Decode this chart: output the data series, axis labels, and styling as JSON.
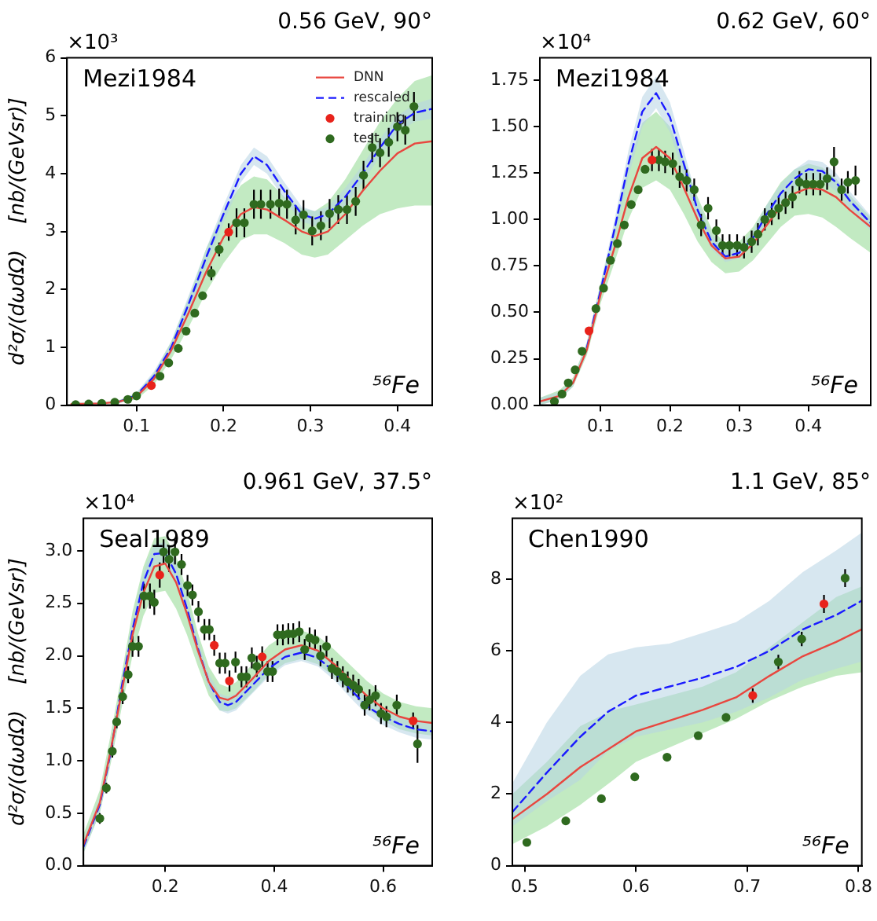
{
  "chart_data": [
    {
      "type": "line",
      "title": "0.56 GeV, 90°",
      "ylabel": "d²σ/(dωdΩ)    [nb/(GeVsr)]",
      "annotations": [
        "×10³",
        "Mezi1984",
        "⁵⁶Fe"
      ],
      "legend": "top right",
      "xlim": [
        0.02,
        0.44
      ],
      "xticks": [
        0.1,
        0.2,
        0.3,
        0.4
      ],
      "ylim": [
        0,
        6
      ],
      "yticks": [
        0,
        1,
        2,
        3,
        4,
        5,
        6
      ],
      "series": [
        {
          "name": "DNN",
          "type": "line",
          "color": "#e8473f",
          "line_style": "solid",
          "x": [
            0.025,
            0.06,
            0.08,
            0.1,
            0.12,
            0.14,
            0.16,
            0.18,
            0.2,
            0.22,
            0.235,
            0.25,
            0.27,
            0.29,
            0.305,
            0.32,
            0.34,
            0.36,
            0.38,
            0.4,
            0.42,
            0.44
          ],
          "values": [
            0.02,
            0.03,
            0.06,
            0.15,
            0.45,
            0.95,
            1.6,
            2.3,
            2.9,
            3.3,
            3.42,
            3.38,
            3.2,
            3.0,
            2.92,
            3.0,
            3.3,
            3.7,
            4.05,
            4.35,
            4.52,
            4.56
          ],
          "lower": [
            0,
            0.02,
            0.04,
            0.1,
            0.35,
            0.8,
            1.35,
            1.95,
            2.45,
            2.85,
            2.95,
            2.95,
            2.8,
            2.6,
            2.55,
            2.6,
            2.85,
            3.1,
            3.3,
            3.4,
            3.45,
            3.45
          ],
          "upper": [
            0.04,
            0.05,
            0.09,
            0.2,
            0.55,
            1.1,
            1.85,
            2.7,
            3.35,
            3.8,
            3.95,
            3.9,
            3.6,
            3.4,
            3.35,
            3.5,
            3.9,
            4.4,
            4.9,
            5.3,
            5.6,
            5.7
          ]
        },
        {
          "name": "rescaled",
          "type": "line",
          "color": "#1a1aff",
          "line_style": "dashed",
          "x": [
            0.025,
            0.06,
            0.08,
            0.1,
            0.12,
            0.14,
            0.16,
            0.18,
            0.2,
            0.22,
            0.235,
            0.25,
            0.27,
            0.29,
            0.305,
            0.32,
            0.34,
            0.36,
            0.38,
            0.4,
            0.42,
            0.44
          ],
          "values": [
            null,
            null,
            0.06,
            0.17,
            0.5,
            1.0,
            1.75,
            2.55,
            3.3,
            4.0,
            4.3,
            4.15,
            3.7,
            3.3,
            3.22,
            3.3,
            3.6,
            4.0,
            4.45,
            4.85,
            5.05,
            5.12
          ],
          "lower": [
            0,
            0.02,
            0.04,
            0.12,
            0.42,
            0.9,
            1.6,
            2.4,
            3.15,
            3.85,
            4.15,
            4.0,
            3.55,
            3.17,
            3.1,
            3.17,
            3.45,
            3.85,
            4.3,
            4.7,
            4.9,
            4.95
          ],
          "upper": [
            0.04,
            0.05,
            0.08,
            0.22,
            0.58,
            1.1,
            1.9,
            2.7,
            3.45,
            4.15,
            4.45,
            4.3,
            3.85,
            3.43,
            3.35,
            3.43,
            3.75,
            4.15,
            4.6,
            5.0,
            5.2,
            5.3
          ]
        },
        {
          "name": "training",
          "type": "scatter",
          "color": "#e8231b",
          "marker": "circle",
          "x": [
            0.117,
            0.206
          ],
          "values": [
            0.34,
            2.99
          ],
          "errors": [
            null,
            0.15
          ]
        },
        {
          "name": "test",
          "type": "scatter",
          "color": "#2f6a1f",
          "marker": "circle",
          "x": [
            0.03,
            0.045,
            0.06,
            0.075,
            0.09,
            0.1,
            0.127,
            0.137,
            0.148,
            0.157,
            0.167,
            0.176,
            0.186,
            0.195,
            0.215,
            0.224,
            0.235,
            0.243,
            0.254,
            0.264,
            0.273,
            0.283,
            0.292,
            0.302,
            0.312,
            0.322,
            0.332,
            0.342,
            0.352,
            0.361,
            0.371,
            0.38,
            0.39,
            0.4,
            0.409,
            0.419
          ],
          "values": [
            0.01,
            0.02,
            0.03,
            0.05,
            0.1,
            0.16,
            0.5,
            0.73,
            0.98,
            1.28,
            1.59,
            1.89,
            2.28,
            2.69,
            3.15,
            3.15,
            3.47,
            3.47,
            3.47,
            3.49,
            3.47,
            3.2,
            3.29,
            3.01,
            3.1,
            3.31,
            3.38,
            3.38,
            3.52,
            3.97,
            4.45,
            4.36,
            4.54,
            4.81,
            4.75,
            5.16
          ],
          "errors": [
            null,
            null,
            null,
            null,
            null,
            null,
            null,
            null,
            null,
            null,
            null,
            null,
            0.12,
            0.12,
            0.25,
            0.25,
            0.25,
            0.25,
            0.25,
            0.25,
            0.25,
            0.25,
            0.25,
            0.25,
            0.25,
            0.25,
            0.25,
            0.25,
            0.25,
            0.25,
            0.25,
            0.25,
            0.25,
            0.25,
            0.25,
            0.25
          ]
        }
      ]
    },
    {
      "type": "line",
      "title": "0.62 GeV, 60°",
      "annotations": [
        "×10⁴",
        "Mezi1984",
        "⁵⁶Fe"
      ],
      "xlim": [
        0.012,
        0.49
      ],
      "xticks": [
        0.1,
        0.2,
        0.3,
        0.4
      ],
      "ylim": [
        0,
        1.87
      ],
      "yticks": [
        {
          "value": 0,
          "label": "0.00"
        },
        0.25,
        {
          "value": 0.5,
          "label": "0.50"
        },
        0.75,
        {
          "value": 1,
          "label": "1.00"
        },
        1.25,
        {
          "value": 1.5,
          "label": "1.50"
        },
        1.75
      ],
      "series": [
        {
          "type": "line",
          "color": "#e8473f",
          "line_style": "solid",
          "x": [
            0.012,
            0.04,
            0.06,
            0.08,
            0.1,
            0.12,
            0.14,
            0.16,
            0.18,
            0.2,
            0.22,
            0.24,
            0.26,
            0.28,
            0.3,
            0.32,
            0.34,
            0.36,
            0.38,
            0.4,
            0.42,
            0.44,
            0.46,
            0.49
          ],
          "values": [
            0.02,
            0.05,
            0.12,
            0.3,
            0.6,
            0.85,
            1.12,
            1.33,
            1.39,
            1.33,
            1.17,
            1.0,
            0.86,
            0.79,
            0.8,
            0.87,
            0.97,
            1.07,
            1.14,
            1.17,
            1.16,
            1.12,
            1.05,
            0.96
          ],
          "lower": [
            0,
            0.03,
            0.1,
            0.27,
            0.55,
            0.77,
            1.0,
            1.17,
            1.21,
            1.16,
            1.03,
            0.88,
            0.77,
            0.71,
            0.72,
            0.78,
            0.87,
            0.96,
            1.02,
            1.03,
            1.01,
            0.96,
            0.9,
            0.82
          ],
          "upper": [
            0.04,
            0.08,
            0.15,
            0.34,
            0.66,
            0.95,
            1.3,
            1.52,
            1.58,
            1.5,
            1.32,
            1.12,
            0.95,
            0.87,
            0.88,
            0.96,
            1.08,
            1.2,
            1.27,
            1.3,
            1.28,
            1.22,
            1.13,
            1.01
          ]
        },
        {
          "type": "line",
          "color": "#1a1aff",
          "line_style": "dashed",
          "x": [
            0.012,
            0.04,
            0.06,
            0.08,
            0.1,
            0.12,
            0.14,
            0.16,
            0.18,
            0.2,
            0.22,
            0.24,
            0.26,
            0.28,
            0.3,
            0.32,
            0.34,
            0.36,
            0.38,
            0.4,
            0.42,
            0.44,
            0.46,
            0.49
          ],
          "values": [
            null,
            null,
            null,
            0.31,
            0.62,
            0.95,
            1.3,
            1.58,
            1.68,
            1.55,
            1.3,
            1.05,
            0.88,
            0.8,
            0.82,
            0.9,
            1.03,
            1.14,
            1.22,
            1.27,
            1.26,
            1.2,
            1.1,
            0.98
          ],
          "lower": [
            0,
            0.03,
            0.1,
            0.28,
            0.58,
            0.9,
            1.23,
            1.5,
            1.6,
            1.47,
            1.23,
            1.0,
            0.84,
            0.77,
            0.79,
            0.86,
            0.98,
            1.09,
            1.17,
            1.22,
            1.21,
            1.15,
            1.05,
            0.94
          ],
          "upper": [
            0.04,
            0.07,
            0.14,
            0.34,
            0.66,
            1.0,
            1.37,
            1.66,
            1.77,
            1.63,
            1.37,
            1.1,
            0.92,
            0.83,
            0.85,
            0.94,
            1.08,
            1.19,
            1.27,
            1.32,
            1.31,
            1.25,
            1.15,
            1.02
          ]
        },
        {
          "type": "scatter",
          "color": "#e8231b",
          "marker": "circle",
          "x": [
            0.083,
            0.174
          ],
          "values": [
            0.4,
            1.32
          ],
          "errors": [
            null,
            0.06
          ]
        },
        {
          "type": "scatter",
          "color": "#2f6a1f",
          "marker": "circle",
          "x": [
            0.033,
            0.044,
            0.053,
            0.063,
            0.073,
            0.093,
            0.104,
            0.114,
            0.124,
            0.134,
            0.144,
            0.154,
            0.164,
            0.184,
            0.193,
            0.204,
            0.214,
            0.224,
            0.235,
            0.245,
            0.255,
            0.267,
            0.276,
            0.286,
            0.297,
            0.307,
            0.318,
            0.327,
            0.337,
            0.347,
            0.357,
            0.367,
            0.377,
            0.387,
            0.397,
            0.407,
            0.417,
            0.427,
            0.437,
            0.448,
            0.457,
            0.468
          ],
          "values": [
            0.02,
            0.06,
            0.12,
            0.19,
            0.29,
            0.52,
            0.63,
            0.78,
            0.87,
            0.97,
            1.08,
            1.16,
            1.27,
            1.32,
            1.31,
            1.3,
            1.23,
            1.21,
            1.16,
            0.97,
            1.06,
            0.94,
            0.86,
            0.86,
            0.86,
            0.85,
            0.88,
            0.92,
            1.0,
            1.03,
            1.06,
            1.09,
            1.12,
            1.2,
            1.19,
            1.19,
            1.19,
            1.22,
            1.31,
            1.16,
            1.2,
            1.21
          ],
          "errors": [
            null,
            null,
            null,
            null,
            null,
            null,
            null,
            null,
            null,
            null,
            null,
            null,
            null,
            0.06,
            0.06,
            0.06,
            0.06,
            0.06,
            0.06,
            0.06,
            0.06,
            0.06,
            0.06,
            0.06,
            0.06,
            0.06,
            0.06,
            0.06,
            0.06,
            0.06,
            0.06,
            0.06,
            0.06,
            0.06,
            0.06,
            0.06,
            0.06,
            0.06,
            0.08,
            0.06,
            0.06,
            0.08
          ]
        }
      ]
    },
    {
      "type": "line",
      "title": "0.961 GeV, 37.5°",
      "ylabel": "d²σ/(dωdΩ)    [nb/(GeVsr)]",
      "annotations": [
        "×10⁴",
        "Seal1989",
        "⁵⁶Fe"
      ],
      "xlim": [
        0.05,
        0.69
      ],
      "xticks": [
        0.2,
        0.4,
        0.6
      ],
      "ylim": [
        0,
        3.31
      ],
      "yticks": [
        {
          "value": 0,
          "label": "0.0"
        },
        0.5,
        {
          "value": 1,
          "label": "1.0"
        },
        1.5,
        {
          "value": 2,
          "label": "2.0"
        },
        2.5,
        {
          "value": 3,
          "label": "3.0"
        }
      ],
      "series": [
        {
          "type": "line",
          "color": "#e8473f",
          "line_style": "solid",
          "x": [
            0.05,
            0.08,
            0.1,
            0.12,
            0.14,
            0.16,
            0.18,
            0.2,
            0.22,
            0.24,
            0.26,
            0.28,
            0.3,
            0.315,
            0.33,
            0.36,
            0.39,
            0.42,
            0.45,
            0.48,
            0.51,
            0.54,
            0.57,
            0.6,
            0.63,
            0.66,
            0.69
          ],
          "values": [
            0.2,
            0.6,
            1.1,
            1.65,
            2.2,
            2.6,
            2.85,
            2.88,
            2.7,
            2.4,
            2.05,
            1.75,
            1.6,
            1.58,
            1.62,
            1.78,
            1.95,
            2.06,
            2.1,
            2.05,
            1.92,
            1.77,
            1.62,
            1.5,
            1.42,
            1.38,
            1.36
          ],
          "lower": [
            0.12,
            0.5,
            0.97,
            1.5,
            2.0,
            2.38,
            2.6,
            2.62,
            2.45,
            2.2,
            1.9,
            1.62,
            1.48,
            1.47,
            1.5,
            1.65,
            1.82,
            1.93,
            1.97,
            1.92,
            1.8,
            1.65,
            1.5,
            1.38,
            1.3,
            1.26,
            1.24
          ],
          "upper": [
            0.3,
            0.72,
            1.25,
            1.82,
            2.42,
            2.85,
            3.12,
            3.14,
            2.95,
            2.62,
            2.22,
            1.9,
            1.73,
            1.7,
            1.75,
            1.92,
            2.1,
            2.2,
            2.24,
            2.19,
            2.06,
            1.91,
            1.76,
            1.64,
            1.56,
            1.52,
            1.5
          ]
        },
        {
          "type": "line",
          "color": "#1a1aff",
          "line_style": "dashed",
          "x": [
            0.05,
            0.08,
            0.1,
            0.12,
            0.14,
            0.16,
            0.18,
            0.2,
            0.22,
            0.24,
            0.26,
            0.28,
            0.3,
            0.315,
            0.33,
            0.36,
            0.39,
            0.42,
            0.45,
            0.48,
            0.51,
            0.54,
            0.57,
            0.6,
            0.63,
            0.66,
            0.69
          ],
          "values": [
            0.18,
            0.58,
            1.08,
            1.7,
            2.25,
            2.7,
            2.97,
            2.98,
            2.78,
            2.45,
            2.07,
            1.75,
            1.56,
            1.53,
            1.56,
            1.72,
            1.88,
            1.99,
            2.03,
            1.98,
            1.85,
            1.68,
            1.52,
            1.42,
            1.35,
            1.3,
            1.28
          ],
          "lower": [
            0.12,
            0.5,
            1.0,
            1.56,
            2.15,
            2.6,
            2.87,
            2.88,
            2.68,
            2.36,
            1.99,
            1.67,
            1.48,
            1.45,
            1.48,
            1.64,
            1.8,
            1.91,
            1.95,
            1.9,
            1.77,
            1.6,
            1.44,
            1.34,
            1.27,
            1.22,
            1.2
          ],
          "upper": [
            0.24,
            0.66,
            1.16,
            1.74,
            2.35,
            2.8,
            3.07,
            3.08,
            2.88,
            2.54,
            2.15,
            1.83,
            1.64,
            1.61,
            1.64,
            1.8,
            1.96,
            2.07,
            2.11,
            2.06,
            1.93,
            1.76,
            1.6,
            1.5,
            1.43,
            1.38,
            1.36
          ]
        },
        {
          "type": "scatter",
          "color": "#e8231b",
          "marker": "circle",
          "x": [
            0.19,
            0.29,
            0.318,
            0.378,
            0.655
          ],
          "values": [
            2.77,
            2.1,
            1.76,
            1.99,
            1.38
          ],
          "errors": [
            0.12,
            0.1,
            0.1,
            0.1,
            0.08
          ]
        },
        {
          "type": "scatter",
          "color": "#2f6a1f",
          "marker": "circle",
          "x": [
            0.08,
            0.092,
            0.103,
            0.111,
            0.122,
            0.132,
            0.14,
            0.151,
            0.161,
            0.172,
            0.18,
            0.197,
            0.207,
            0.218,
            0.23,
            0.241,
            0.25,
            0.261,
            0.272,
            0.281,
            0.3,
            0.31,
            0.329,
            0.34,
            0.349,
            0.359,
            0.368,
            0.388,
            0.397,
            0.406,
            0.416,
            0.426,
            0.435,
            0.446,
            0.456,
            0.465,
            0.475,
            0.485,
            0.496,
            0.506,
            0.516,
            0.526,
            0.535,
            0.545,
            0.555,
            0.566,
            0.575,
            0.586,
            0.596,
            0.606,
            0.625,
            0.663
          ],
          "values": [
            0.45,
            0.74,
            1.09,
            1.37,
            1.61,
            1.82,
            2.09,
            2.09,
            2.57,
            2.57,
            2.51,
            2.99,
            2.92,
            2.99,
            2.87,
            2.67,
            2.58,
            2.42,
            2.25,
            2.25,
            1.93,
            1.93,
            1.94,
            1.8,
            1.8,
            1.98,
            1.9,
            1.85,
            1.85,
            2.2,
            2.2,
            2.21,
            2.21,
            2.23,
            2.06,
            2.17,
            2.15,
            2.0,
            2.09,
            1.88,
            1.85,
            1.8,
            1.75,
            1.72,
            1.68,
            1.53,
            1.58,
            1.62,
            1.45,
            1.42,
            1.53,
            1.16
          ],
          "errors": [
            0.05,
            0.05,
            0.06,
            0.06,
            0.07,
            0.08,
            0.1,
            0.1,
            0.12,
            0.12,
            0.12,
            0.12,
            0.12,
            0.12,
            0.1,
            0.1,
            0.1,
            0.1,
            0.1,
            0.1,
            0.1,
            0.1,
            0.1,
            0.1,
            0.1,
            0.1,
            0.1,
            0.1,
            0.1,
            0.1,
            0.1,
            0.1,
            0.1,
            0.1,
            0.1,
            0.1,
            0.1,
            0.1,
            0.1,
            0.1,
            0.1,
            0.1,
            0.1,
            0.1,
            0.1,
            0.1,
            0.1,
            0.1,
            0.1,
            0.1,
            0.1,
            0.18
          ]
        }
      ]
    },
    {
      "type": "line",
      "title": "1.1 GeV, 85°",
      "annotations": [
        "×10²",
        "Chen1990",
        "⁵⁶Fe"
      ],
      "xlim": [
        0.489,
        0.803
      ],
      "xticks": [
        0.5,
        0.6,
        0.7,
        0.8
      ],
      "ylim": [
        0,
        9.7
      ],
      "yticks": [
        0,
        2,
        4,
        6,
        8
      ],
      "series": [
        {
          "type": "line",
          "color": "#e8473f",
          "line_style": "solid",
          "x": [
            0.489,
            0.52,
            0.55,
            0.58,
            0.6,
            0.63,
            0.66,
            0.69,
            0.72,
            0.75,
            0.78,
            0.803
          ],
          "values": [
            1.3,
            2.0,
            2.75,
            3.35,
            3.75,
            4.05,
            4.35,
            4.7,
            5.3,
            5.85,
            6.25,
            6.6
          ],
          "lower": [
            0.6,
            1.1,
            1.7,
            2.4,
            2.9,
            3.3,
            3.7,
            4.1,
            4.6,
            5.0,
            5.3,
            5.4
          ],
          "upper": [
            2.0,
            2.9,
            3.9,
            4.35,
            4.5,
            4.75,
            5.0,
            5.4,
            6.1,
            6.8,
            7.5,
            7.8
          ]
        },
        {
          "type": "line",
          "color": "#1a1aff",
          "line_style": "dashed",
          "x": [
            0.489,
            0.52,
            0.55,
            0.575,
            0.6,
            0.63,
            0.66,
            0.69,
            0.72,
            0.75,
            0.78,
            0.803
          ],
          "values": [
            1.5,
            2.6,
            3.6,
            4.3,
            4.75,
            5.0,
            5.25,
            5.55,
            6.0,
            6.6,
            7.0,
            7.4
          ],
          "lower": [
            1.1,
            1.8,
            2.4,
            3.2,
            3.6,
            3.8,
            4.0,
            4.3,
            4.7,
            5.2,
            5.5,
            5.7
          ],
          "upper": [
            2.3,
            4.0,
            5.3,
            5.9,
            6.1,
            6.2,
            6.5,
            6.8,
            7.4,
            8.2,
            8.8,
            9.3
          ]
        },
        {
          "type": "scatter",
          "color": "#e8231b",
          "marker": "circle",
          "x": [
            0.705,
            0.769
          ],
          "values": [
            4.75,
            7.31
          ],
          "errors": [
            0.2,
            0.25
          ]
        },
        {
          "type": "scatter",
          "color": "#2f6a1f",
          "marker": "circle",
          "x": [
            0.502,
            0.537,
            0.569,
            0.599,
            0.628,
            0.656,
            0.681,
            0.728,
            0.749,
            0.788
          ],
          "values": [
            0.65,
            1.25,
            1.87,
            2.48,
            3.03,
            3.63,
            4.14,
            5.69,
            6.33,
            8.03
          ],
          "errors": [
            null,
            null,
            null,
            null,
            null,
            null,
            null,
            0.2,
            0.2,
            0.25
          ]
        }
      ]
    }
  ]
}
